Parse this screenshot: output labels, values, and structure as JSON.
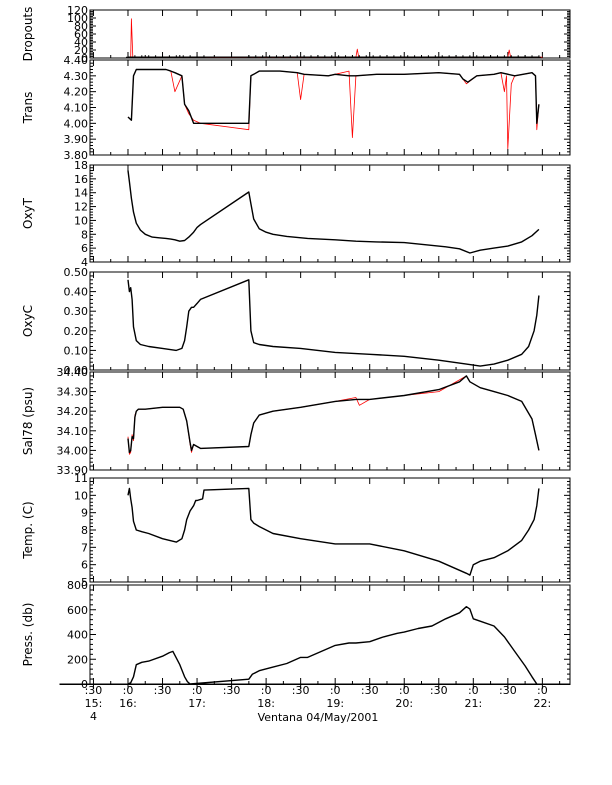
{
  "figure": {
    "xlabel": "Ventana 04/May/2001",
    "x_ticks": [
      {
        "t": 15.5,
        "top": ":30",
        "l2": "15:",
        "l3": "4"
      },
      {
        "t": 16.0,
        "top": ":0",
        "l2": "16:",
        "l3": ""
      },
      {
        "t": 16.5,
        "top": ":30",
        "l2": "",
        "l3": ""
      },
      {
        "t": 17.0,
        "top": ":0",
        "l2": "17:",
        "l3": ""
      },
      {
        "t": 17.5,
        "top": ":30",
        "l2": "",
        "l3": ""
      },
      {
        "t": 18.0,
        "top": ":0",
        "l2": "18:",
        "l3": ""
      },
      {
        "t": 18.5,
        "top": ":30",
        "l2": "",
        "l3": ""
      },
      {
        "t": 19.0,
        "top": ":0",
        "l2": "19:",
        "l3": ""
      },
      {
        "t": 19.5,
        "top": ":30",
        "l2": "",
        "l3": ""
      },
      {
        "t": 20.0,
        "top": ":0",
        "l2": "20:",
        "l3": ""
      },
      {
        "t": 20.5,
        "top": ":30",
        "l2": "",
        "l3": ""
      },
      {
        "t": 21.0,
        "top": ":0",
        "l2": "21:",
        "l3": ""
      },
      {
        "t": 21.5,
        "top": ":30",
        "l2": "",
        "l3": ""
      },
      {
        "t": 22.0,
        "top": ":0",
        "l2": "22:",
        "l3": ""
      }
    ],
    "xlim": [
      15.45,
      22.4
    ],
    "colors": {
      "raw": "#ff0000",
      "data": "#000000",
      "axis": "#000000"
    }
  },
  "chart_data": [
    {
      "type": "line",
      "ylabel": "Dropouts",
      "ylim": [
        0,
        120
      ],
      "ytick_labels": [
        "0",
        "20",
        "40",
        "60",
        "80",
        "100",
        "120"
      ],
      "series": [
        {
          "role": "raw",
          "x": [
            16.0,
            16.04,
            16.05,
            16.07,
            17.0,
            17.6,
            19.3,
            19.32,
            19.34,
            21.5,
            21.52,
            21.54,
            22.0
          ],
          "y": [
            2,
            2,
            98,
            2,
            2,
            0,
            2,
            22,
            2,
            2,
            20,
            2,
            2
          ]
        },
        {
          "role": "data",
          "marker": "+",
          "x": [
            16.0,
            16.1,
            16.2,
            16.3,
            16.4,
            16.5,
            16.6,
            16.7,
            16.8,
            16.9,
            17.0,
            17.1,
            17.75,
            17.85,
            17.95,
            18.05,
            18.15,
            18.25,
            18.35,
            18.45,
            18.55,
            18.65,
            18.75,
            18.85,
            18.95,
            19.05,
            19.15,
            19.25,
            19.35,
            19.45,
            19.55,
            19.65,
            19.75,
            19.85,
            19.95,
            20.05,
            20.15,
            20.25,
            20.35,
            20.45,
            20.55,
            20.65,
            20.75,
            20.85,
            20.95,
            21.05,
            21.15,
            21.25,
            21.35,
            21.45,
            21.55,
            21.65,
            21.75,
            21.85,
            21.95
          ],
          "y": [
            2,
            2,
            2,
            2,
            2,
            2,
            2,
            2,
            2,
            2,
            2,
            2,
            2,
            2,
            2,
            2,
            2,
            2,
            2,
            2,
            2,
            2,
            2,
            2,
            2,
            2,
            2,
            2,
            2,
            2,
            2,
            2,
            2,
            2,
            2,
            2,
            2,
            2,
            2,
            2,
            2,
            2,
            2,
            2,
            2,
            2,
            2,
            2,
            2,
            2,
            2,
            2,
            2,
            2,
            2
          ]
        }
      ]
    },
    {
      "type": "line",
      "ylabel": "Trans",
      "ylim": [
        3.8,
        4.4
      ],
      "ytick_labels": [
        "3.80",
        "3.90",
        "4.00",
        "4.10",
        "4.20",
        "4.30",
        "4.40"
      ],
      "series": [
        {
          "role": "raw",
          "x": [
            16.0,
            16.05,
            16.08,
            16.12,
            16.25,
            16.55,
            16.62,
            16.68,
            16.78,
            16.82,
            16.88,
            16.95,
            17.05,
            17.75,
            17.78,
            17.82,
            17.9,
            18.2,
            18.45,
            18.5,
            18.55,
            18.9,
            19.0,
            19.2,
            19.25,
            19.3,
            19.6,
            20.0,
            20.5,
            20.8,
            20.9,
            21.05,
            21.3,
            21.4,
            21.45,
            21.48,
            21.5,
            21.55,
            21.6,
            21.85,
            21.9,
            21.92,
            21.95
          ],
          "y": [
            4.04,
            4.02,
            4.3,
            4.34,
            4.34,
            4.34,
            4.33,
            4.2,
            4.3,
            4.12,
            4.06,
            4.02,
            4.0,
            3.96,
            4.3,
            4.31,
            4.33,
            4.33,
            4.32,
            4.15,
            4.31,
            4.3,
            4.31,
            4.33,
            3.91,
            4.3,
            4.31,
            4.31,
            4.32,
            4.31,
            4.25,
            4.3,
            4.31,
            4.32,
            4.2,
            4.3,
            3.84,
            4.25,
            4.3,
            4.32,
            4.3,
            3.96,
            4.12
          ]
        },
        {
          "role": "data",
          "x": [
            16.0,
            16.05,
            16.08,
            16.12,
            16.25,
            16.55,
            16.62,
            16.68,
            16.78,
            16.82,
            16.88,
            16.95,
            17.75,
            17.78,
            17.82,
            17.9,
            18.2,
            18.45,
            18.55,
            18.9,
            19.0,
            19.2,
            19.3,
            19.6,
            20.0,
            20.5,
            20.8,
            20.85,
            20.92,
            21.05,
            21.3,
            21.4,
            21.6,
            21.85,
            21.9,
            21.92,
            21.95
          ],
          "y": [
            4.04,
            4.02,
            4.3,
            4.34,
            4.34,
            4.34,
            4.33,
            4.32,
            4.3,
            4.12,
            4.08,
            4.0,
            4.0,
            4.3,
            4.31,
            4.33,
            4.33,
            4.32,
            4.31,
            4.3,
            4.31,
            4.3,
            4.3,
            4.31,
            4.31,
            4.32,
            4.31,
            4.28,
            4.26,
            4.3,
            4.31,
            4.32,
            4.3,
            4.32,
            4.3,
            4.0,
            4.12
          ]
        }
      ]
    },
    {
      "type": "line",
      "ylabel": "OxyT",
      "ylim": [
        4,
        18
      ],
      "ytick_labels": [
        "4",
        "6",
        "8",
        "10",
        "12",
        "14",
        "16",
        "18"
      ],
      "series": [
        {
          "role": "raw",
          "x": [
            17.05,
            17.75
          ],
          "y": [
            9.4,
            14.1
          ]
        },
        {
          "role": "data",
          "x": [
            16.0,
            16.02,
            16.05,
            16.08,
            16.12,
            16.18,
            16.25,
            16.35,
            16.45,
            16.55,
            16.62,
            16.68,
            16.75,
            16.82,
            16.88,
            16.95,
            17.0,
            17.05,
            17.75,
            17.78,
            17.82,
            17.9,
            18.0,
            18.1,
            18.3,
            18.6,
            19.0,
            19.3,
            19.6,
            20.0,
            20.3,
            20.6,
            20.8,
            20.95,
            21.1,
            21.3,
            21.5,
            21.7,
            21.85,
            21.95
          ],
          "y": [
            17.2,
            15.6,
            13.2,
            11.2,
            9.6,
            8.6,
            8.0,
            7.6,
            7.5,
            7.4,
            7.3,
            7.2,
            7.0,
            7.1,
            7.6,
            8.3,
            9.0,
            9.4,
            14.1,
            12.4,
            10.2,
            8.8,
            8.3,
            8.0,
            7.7,
            7.4,
            7.2,
            7.0,
            6.9,
            6.8,
            6.5,
            6.2,
            5.9,
            5.3,
            5.7,
            6.0,
            6.3,
            6.9,
            7.8,
            8.7
          ]
        }
      ]
    },
    {
      "type": "line",
      "ylabel": "OxyC",
      "ylim": [
        0.0,
        0.5
      ],
      "ytick_labels": [
        "0.00",
        "0.10",
        "0.20",
        "0.30",
        "0.40",
        "0.50"
      ],
      "series": [
        {
          "role": "raw",
          "x": [
            17.05,
            17.75
          ],
          "y": [
            0.36,
            0.46
          ]
        },
        {
          "role": "data",
          "x": [
            16.0,
            16.02,
            16.04,
            16.06,
            16.08,
            16.12,
            16.18,
            16.3,
            16.5,
            16.7,
            16.78,
            16.82,
            16.85,
            16.88,
            16.92,
            16.95,
            17.0,
            17.05,
            17.75,
            17.78,
            17.82,
            17.9,
            18.1,
            18.5,
            19.0,
            19.5,
            20.0,
            20.5,
            20.9,
            21.1,
            21.3,
            21.5,
            21.7,
            21.8,
            21.88,
            21.92,
            21.95
          ],
          "y": [
            0.46,
            0.4,
            0.42,
            0.36,
            0.22,
            0.15,
            0.13,
            0.12,
            0.11,
            0.1,
            0.11,
            0.15,
            0.22,
            0.3,
            0.32,
            0.32,
            0.34,
            0.36,
            0.46,
            0.2,
            0.14,
            0.13,
            0.12,
            0.11,
            0.09,
            0.08,
            0.07,
            0.05,
            0.03,
            0.02,
            0.03,
            0.05,
            0.08,
            0.12,
            0.2,
            0.28,
            0.38
          ]
        }
      ]
    },
    {
      "type": "line",
      "ylabel": "Sal78 (psu)",
      "ylim": [
        33.9,
        34.4
      ],
      "ytick_labels": [
        "33.90",
        "34.00",
        "34.10",
        "34.20",
        "34.30",
        "34.40"
      ],
      "series": [
        {
          "role": "raw",
          "x": [
            16.0,
            16.02,
            16.04,
            16.06,
            16.08,
            16.1,
            16.12,
            16.15,
            16.25,
            16.5,
            16.75,
            16.8,
            16.85,
            16.9,
            16.92,
            16.95,
            17.0,
            17.05,
            17.75,
            17.78,
            17.82,
            17.9,
            18.1,
            18.5,
            19.0,
            19.3,
            19.35,
            19.5,
            20.0,
            20.5,
            20.9,
            20.95,
            21.1,
            21.3,
            21.5,
            21.7,
            21.85,
            21.9,
            21.95
          ],
          "y": [
            34.07,
            33.98,
            33.99,
            34.08,
            34.05,
            34.18,
            34.2,
            34.21,
            34.21,
            34.22,
            34.22,
            34.21,
            34.15,
            34.03,
            33.99,
            34.03,
            34.02,
            34.01,
            34.02,
            34.08,
            34.14,
            34.18,
            34.2,
            34.22,
            34.25,
            34.27,
            34.23,
            34.26,
            34.28,
            34.3,
            34.38,
            34.35,
            34.32,
            34.3,
            34.28,
            34.25,
            34.16,
            34.08,
            34.0
          ]
        },
        {
          "role": "data",
          "x": [
            16.0,
            16.02,
            16.04,
            16.06,
            16.08,
            16.1,
            16.12,
            16.15,
            16.25,
            16.5,
            16.75,
            16.8,
            16.85,
            16.9,
            16.92,
            16.95,
            17.0,
            17.05,
            17.75,
            17.78,
            17.82,
            17.9,
            18.1,
            18.5,
            19.0,
            19.3,
            19.5,
            20.0,
            20.5,
            20.8,
            20.9,
            20.95,
            21.1,
            21.3,
            21.5,
            21.7,
            21.85,
            21.9,
            21.95
          ],
          "y": [
            34.06,
            33.99,
            34.0,
            34.07,
            34.06,
            34.17,
            34.2,
            34.21,
            34.21,
            34.22,
            34.22,
            34.21,
            34.15,
            34.04,
            34.0,
            34.03,
            34.02,
            34.01,
            34.02,
            34.08,
            34.14,
            34.18,
            34.2,
            34.22,
            34.25,
            34.26,
            34.26,
            34.28,
            34.31,
            34.35,
            34.38,
            34.35,
            34.32,
            34.3,
            34.28,
            34.25,
            34.16,
            34.08,
            34.0
          ]
        }
      ]
    },
    {
      "type": "line",
      "ylabel": "Temp. (C)",
      "ylim": [
        5,
        11
      ],
      "ytick_labels": [
        "5",
        "6",
        "7",
        "8",
        "9",
        "10",
        "11"
      ],
      "series": [
        {
          "role": "raw",
          "x": [
            17.1,
            17.75
          ],
          "y": [
            10.3,
            10.4
          ]
        },
        {
          "role": "data",
          "x": [
            16.0,
            16.02,
            16.04,
            16.06,
            16.08,
            16.12,
            16.2,
            16.3,
            16.5,
            16.7,
            16.78,
            16.82,
            16.85,
            16.9,
            16.95,
            16.98,
            17.0,
            17.08,
            17.1,
            17.75,
            17.78,
            17.82,
            17.9,
            18.0,
            18.1,
            18.5,
            19.0,
            19.5,
            20.0,
            20.5,
            20.9,
            20.95,
            21.0,
            21.1,
            21.3,
            21.5,
            21.7,
            21.8,
            21.88,
            21.92,
            21.95
          ],
          "y": [
            10.0,
            10.4,
            9.8,
            9.3,
            8.5,
            8.0,
            7.9,
            7.8,
            7.5,
            7.3,
            7.5,
            8.0,
            8.6,
            9.1,
            9.4,
            9.7,
            9.7,
            9.8,
            10.3,
            10.4,
            8.6,
            8.4,
            8.2,
            8.0,
            7.8,
            7.5,
            7.2,
            7.2,
            6.8,
            6.2,
            5.5,
            5.4,
            6.0,
            6.2,
            6.4,
            6.8,
            7.4,
            8.0,
            8.6,
            9.4,
            10.4
          ]
        }
      ]
    },
    {
      "type": "line",
      "ylabel": "Press. (db)",
      "ylim": [
        -20,
        800
      ],
      "ytick_labels": [
        "0",
        "200",
        "400",
        "600",
        "800"
      ],
      "series": [
        {
          "role": "raw",
          "x": [
            16.9,
            17.75
          ],
          "y": [
            -20,
            -20
          ]
        },
        {
          "role": "data",
          "x": [
            16.0,
            16.04,
            16.08,
            16.12,
            16.2,
            16.3,
            16.5,
            16.6,
            16.65,
            16.75,
            16.82,
            16.86,
            16.9,
            17.75,
            17.8,
            17.9,
            18.1,
            18.3,
            18.5,
            18.6,
            18.8,
            19.0,
            19.2,
            19.3,
            19.5,
            19.7,
            19.9,
            20.0,
            20.2,
            20.4,
            20.6,
            20.8,
            20.9,
            20.95,
            21.0,
            21.1,
            21.3,
            21.45,
            21.6,
            21.75,
            21.85,
            21.92
          ],
          "y": [
            -20,
            -10,
            40,
            140,
            160,
            170,
            210,
            240,
            250,
            140,
            40,
            0,
            -20,
            20,
            60,
            90,
            120,
            150,
            200,
            200,
            250,
            300,
            320,
            320,
            330,
            370,
            400,
            410,
            440,
            460,
            520,
            570,
            620,
            600,
            520,
            500,
            460,
            370,
            250,
            130,
            40,
            -20
          ]
        }
      ]
    }
  ]
}
